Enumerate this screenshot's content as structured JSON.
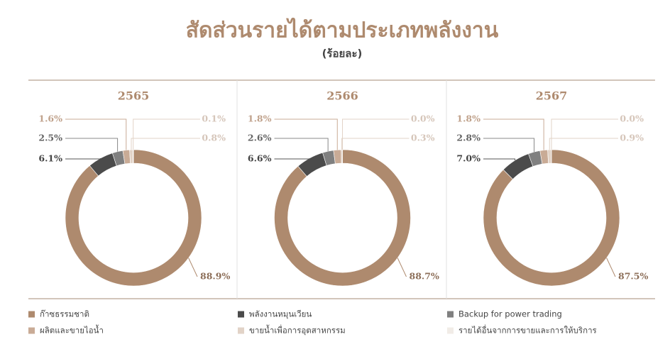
{
  "title": "สัดส่วนรายได้ตามประเภทพลังงาน",
  "subtitle": "(ร้อยละ)",
  "categories": [
    "ก๊าซธรรมชาติ",
    "พลังงานหมุนเวียน",
    "Backup for power trading",
    "ผลิตและขายไอน้ำ",
    "ขายน้ำเพื่อการอุตสาหกรรม",
    "รายได้อื่นจากการขายและการให้บริการ"
  ],
  "colors": [
    "#ae8a6e",
    "#4b4b4b",
    "#808080",
    "#c9ab96",
    "#e2d3c7",
    "#f1ece7"
  ],
  "chart_data": [
    {
      "type": "pie",
      "title": "2565",
      "values": [
        88.9,
        6.1,
        2.5,
        1.6,
        0.8,
        0.1
      ],
      "value_labels": [
        "88.9%",
        "6.1%",
        "2.5%",
        "1.6%",
        "0.8%",
        "0.1%"
      ]
    },
    {
      "type": "pie",
      "title": "2566",
      "values": [
        88.7,
        6.6,
        2.6,
        1.8,
        0.3,
        0.0
      ],
      "value_labels": [
        "88.7%",
        "6.6%",
        "2.6%",
        "1.8%",
        "0.3%",
        "0.0%"
      ]
    },
    {
      "type": "pie",
      "title": "2567",
      "values": [
        87.5,
        7.0,
        2.8,
        1.8,
        0.9,
        0.0
      ],
      "value_labels": [
        "87.5%",
        "7.0%",
        "2.8%",
        "1.8%",
        "0.9%",
        "0.0%"
      ]
    }
  ]
}
